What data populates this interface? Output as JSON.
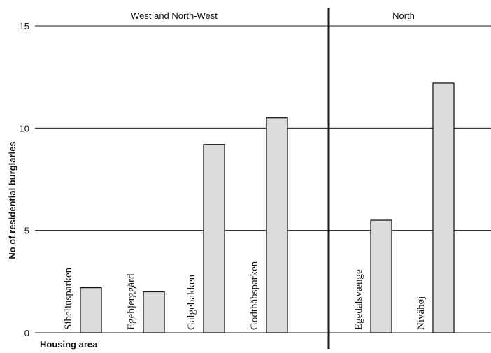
{
  "chart_data": {
    "type": "bar",
    "ylabel": "No of residential burglaries",
    "xlabel": "Housing area",
    "ylim": [
      0,
      15
    ],
    "yticks": [
      0,
      5,
      10,
      15
    ],
    "grid": true,
    "groups": [
      {
        "name": "West and North-West",
        "categories": [
          "Sibeliusparken",
          "Egebjerggård",
          "Galgebakken",
          "Godthåbsparken"
        ]
      },
      {
        "name": "North",
        "categories": [
          "Egedalsvænge",
          "Nivähøj"
        ]
      }
    ],
    "categories": [
      "Sibeliusparken",
      "Egebjerggård",
      "Galgebakken",
      "Godthåbsparken",
      "Egedalsvænge",
      "Nivähøj"
    ],
    "values": [
      2.2,
      2.0,
      9.2,
      10.5,
      5.5,
      12.2
    ]
  }
}
